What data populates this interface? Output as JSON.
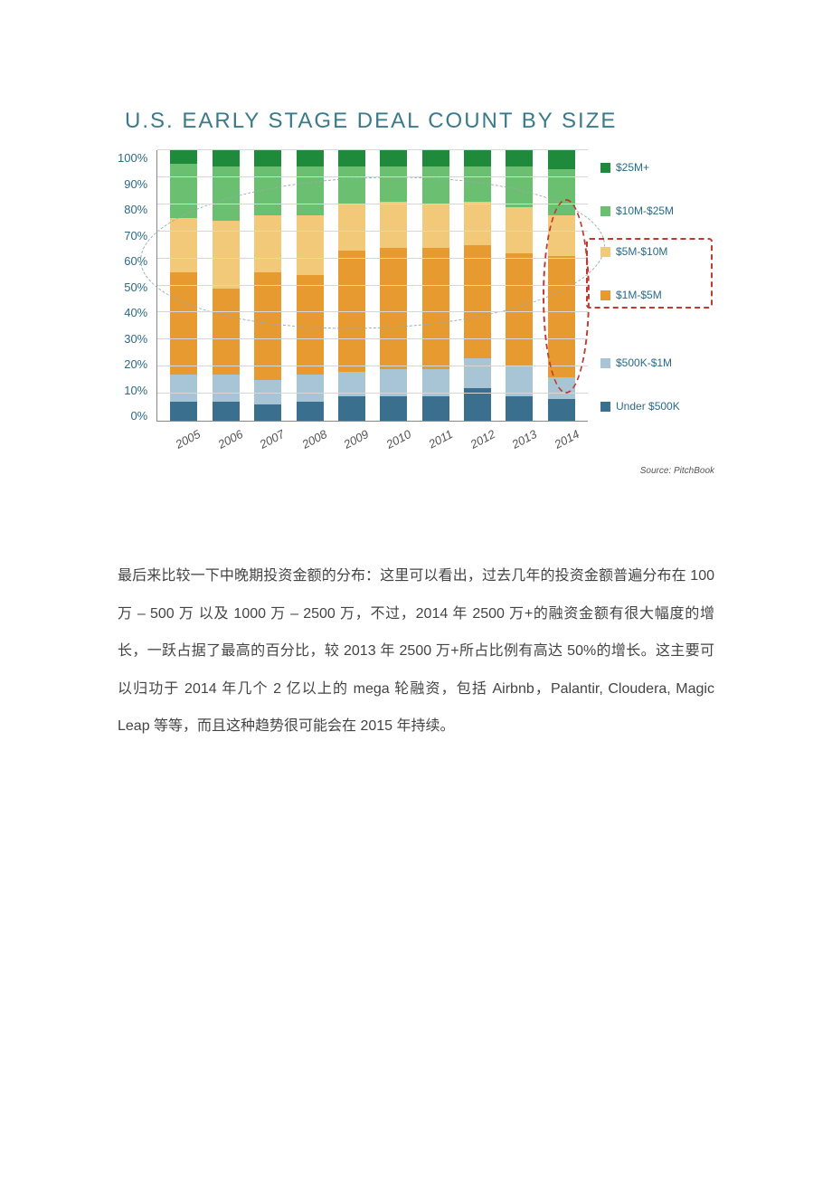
{
  "chart": {
    "title": "U.S. EARLY STAGE DEAL COUNT BY SIZE",
    "title_color": "#3a7a8a",
    "y_label_color": "#2a6a8a",
    "yticks": [
      "100%",
      "90%",
      "80%",
      "70%",
      "60%",
      "50%",
      "40%",
      "30%",
      "20%",
      "10%",
      "0%"
    ],
    "categories": [
      "2005",
      "2006",
      "2007",
      "2008",
      "2009",
      "2010",
      "2011",
      "2012",
      "2013",
      "2014"
    ],
    "series_labels": [
      "Under $500K",
      "$500K-$1M",
      "$1M-$5M",
      "$5M-$10M",
      "$10M-$25M",
      "$25M+"
    ],
    "series_colors": [
      "#3b6f8e",
      "#a8c5d6",
      "#e79a2f",
      "#f2c879",
      "#6bbf70",
      "#1f8a3b"
    ],
    "legend_positions_pct": [
      94,
      78,
      53,
      37,
      22,
      6
    ],
    "stacks": [
      [
        7,
        10,
        38,
        20,
        20,
        5
      ],
      [
        7,
        10,
        32,
        25,
        20,
        6
      ],
      [
        6,
        9,
        40,
        21,
        18,
        6
      ],
      [
        7,
        10,
        37,
        22,
        18,
        6
      ],
      [
        9,
        9,
        45,
        17,
        14,
        6
      ],
      [
        9,
        10,
        45,
        17,
        13,
        6
      ],
      [
        9,
        10,
        45,
        16,
        14,
        6
      ],
      [
        12,
        11,
        42,
        16,
        13,
        6
      ],
      [
        9,
        11,
        42,
        17,
        15,
        6
      ],
      [
        8,
        8,
        45,
        15,
        17,
        7
      ]
    ],
    "grid_color": "#d7d7d7",
    "background": "#ffffff",
    "source_text": "Source: PitchBook",
    "highlight_bar_index": 9,
    "highlight_legend_indices": [
      2,
      3
    ],
    "highlight_color": "#c23a2f"
  },
  "paragraph": "最后来比较一下中晚期投资金额的分布：这里可以看出，过去几年的投资金额普遍分布在 100 万 – 500 万 以及 1000 万 – 2500 万，不过，2014 年 2500 万+的融资金额有很大幅度的增长，一跃占据了最高的百分比，较 2013 年 2500 万+所占比例有高达 50%的增长。这主要可以归功于 2014 年几个 2 亿以上的 mega 轮融资，包括 Airbnb，Palantir, Cloudera, Magic Leap 等等，而且这种趋势很可能会在 2015 年持续。"
}
